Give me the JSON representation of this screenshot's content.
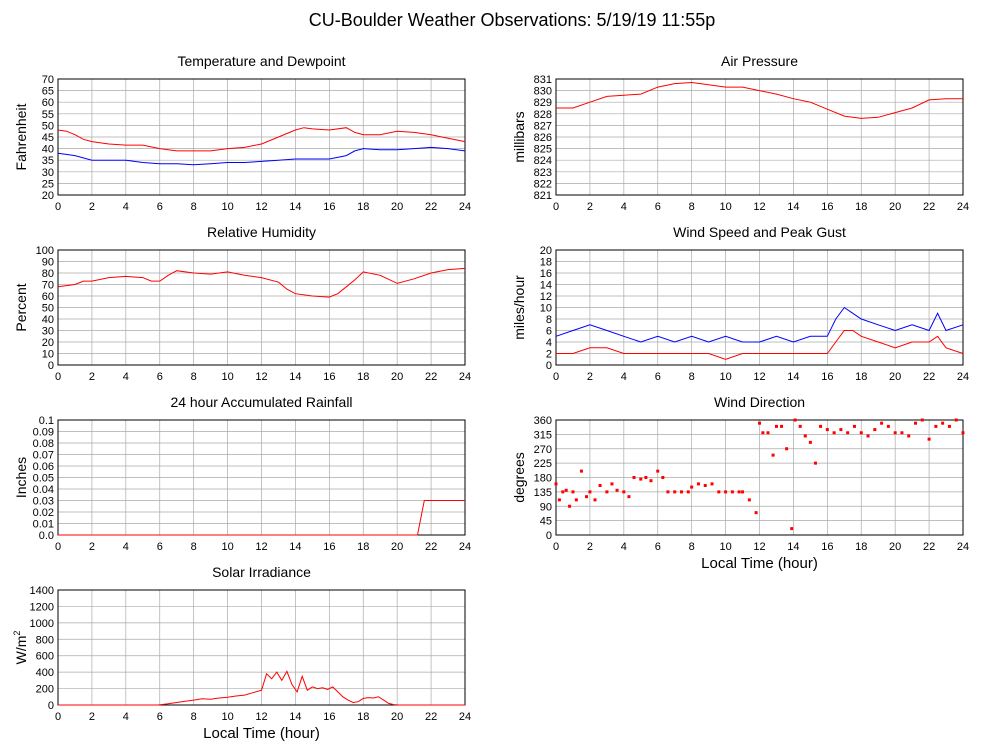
{
  "page": {
    "title": "CU-Boulder Weather Observations: 5/19/19 11:55p"
  },
  "chart_data": [
    {
      "id": "temp",
      "type": "line",
      "title": "Temperature and Dewpoint",
      "ylabel": "Fahrenheit",
      "xlabel": "",
      "xlim": [
        0,
        24
      ],
      "ylim": [
        20,
        70
      ],
      "xticks": [
        0,
        2,
        4,
        6,
        8,
        10,
        12,
        14,
        16,
        18,
        20,
        22,
        24
      ],
      "yticks": [
        20,
        25,
        30,
        35,
        40,
        45,
        50,
        55,
        60,
        65,
        70
      ],
      "grid": true,
      "series": [
        {
          "color": "#ff0000",
          "x": [
            0,
            0.5,
            1,
            1.5,
            2,
            3,
            4,
            5,
            6,
            7,
            8,
            9,
            10,
            11,
            12,
            13,
            14,
            14.5,
            15,
            16,
            17,
            17.5,
            18,
            19,
            20,
            21,
            22,
            23,
            24
          ],
          "y": [
            48,
            47.5,
            46,
            44,
            43,
            42,
            41.5,
            41.5,
            40,
            39,
            39,
            39,
            40,
            40.5,
            42,
            45,
            48,
            49,
            48.5,
            48,
            49,
            47,
            46,
            46,
            47.5,
            47,
            46,
            44.5,
            43
          ]
        },
        {
          "color": "#0000ff",
          "x": [
            0,
            1,
            2,
            3,
            4,
            5,
            6,
            7,
            8,
            9,
            10,
            11,
            12,
            13,
            14,
            15,
            16,
            17,
            17.5,
            18,
            19,
            20,
            21,
            22,
            23,
            24
          ],
          "y": [
            38,
            37,
            35,
            35,
            35,
            34,
            33.5,
            33.5,
            33,
            33.5,
            34,
            34,
            34.5,
            35,
            35.5,
            35.5,
            35.5,
            37,
            39,
            40,
            39.5,
            39.5,
            40,
            40.5,
            40,
            39
          ]
        }
      ]
    },
    {
      "id": "pressure",
      "type": "line",
      "title": "Air Pressure",
      "ylabel": "millibars",
      "xlabel": "",
      "xlim": [
        0,
        24
      ],
      "ylim": [
        821,
        831
      ],
      "xticks": [
        0,
        2,
        4,
        6,
        8,
        10,
        12,
        14,
        16,
        18,
        20,
        22,
        24
      ],
      "yticks": [
        821,
        822,
        823,
        824,
        825,
        826,
        827,
        828,
        829,
        830,
        831
      ],
      "grid": true,
      "series": [
        {
          "color": "#ff0000",
          "x": [
            0,
            1,
            2,
            3,
            4,
            5,
            6,
            7,
            8,
            9,
            10,
            11,
            12,
            13,
            14,
            15,
            16,
            17,
            18,
            19,
            20,
            21,
            22,
            23,
            24
          ],
          "y": [
            828.5,
            828.5,
            829,
            829.5,
            829.6,
            829.7,
            830.3,
            830.6,
            830.7,
            830.5,
            830.3,
            830.3,
            830,
            829.7,
            829.3,
            829,
            828.4,
            827.8,
            827.6,
            827.7,
            828.1,
            828.5,
            829.2,
            829.3,
            829.3
          ]
        }
      ]
    },
    {
      "id": "humidity",
      "type": "line",
      "title": "Relative Humidity",
      "ylabel": "Percent",
      "xlabel": "",
      "xlim": [
        0,
        24
      ],
      "ylim": [
        0,
        100
      ],
      "xticks": [
        0,
        2,
        4,
        6,
        8,
        10,
        12,
        14,
        16,
        18,
        20,
        22,
        24
      ],
      "yticks": [
        0,
        10,
        20,
        30,
        40,
        50,
        60,
        70,
        80,
        90,
        100
      ],
      "grid": true,
      "series": [
        {
          "color": "#ff0000",
          "x": [
            0,
            0.5,
            1,
            1.5,
            2,
            3,
            4,
            5,
            5.5,
            6,
            6.5,
            7,
            8,
            9,
            10,
            11,
            12,
            13,
            13.5,
            14,
            15,
            16,
            16.5,
            17,
            17.5,
            18,
            19,
            20,
            21,
            22,
            23,
            24
          ],
          "y": [
            68,
            69,
            70,
            73,
            73,
            76,
            77,
            76,
            73,
            73,
            78,
            82,
            80,
            79,
            81,
            78,
            76,
            72,
            66,
            62,
            60,
            59,
            62,
            68,
            74,
            81,
            78,
            71,
            75,
            80,
            83,
            84
          ]
        }
      ]
    },
    {
      "id": "wind",
      "type": "line",
      "title": "Wind Speed and Peak Gust",
      "ylabel": "miles/hour",
      "xlabel": "",
      "xlim": [
        0,
        24
      ],
      "ylim": [
        0,
        20
      ],
      "xticks": [
        0,
        2,
        4,
        6,
        8,
        10,
        12,
        14,
        16,
        18,
        20,
        22,
        24
      ],
      "yticks": [
        0,
        2,
        4,
        6,
        8,
        10,
        12,
        14,
        16,
        18,
        20
      ],
      "grid": true,
      "series": [
        {
          "color": "#0000ff",
          "x": [
            0,
            1,
            2,
            3,
            4,
            5,
            6,
            7,
            8,
            9,
            10,
            11,
            12,
            13,
            14,
            15,
            16,
            16.5,
            17,
            17.5,
            18,
            19,
            20,
            21,
            22,
            22.5,
            23,
            24
          ],
          "y": [
            5,
            6,
            7,
            6,
            5,
            4,
            5,
            4,
            5,
            4,
            5,
            4,
            4,
            5,
            4,
            5,
            5,
            8,
            10,
            9,
            8,
            7,
            6,
            7,
            6,
            9,
            6,
            7
          ]
        },
        {
          "color": "#ff0000",
          "x": [
            0,
            1,
            2,
            3,
            4,
            5,
            6,
            7,
            8,
            9,
            10,
            11,
            12,
            13,
            14,
            15,
            16,
            16.5,
            17,
            17.5,
            18,
            19,
            20,
            21,
            22,
            22.5,
            23,
            24
          ],
          "y": [
            2,
            2,
            3,
            3,
            2,
            2,
            2,
            2,
            2,
            2,
            1,
            2,
            2,
            2,
            2,
            2,
            2,
            4,
            6,
            6,
            5,
            4,
            3,
            4,
            4,
            5,
            3,
            2
          ]
        }
      ]
    },
    {
      "id": "rain",
      "type": "line",
      "title": "24 hour Accumulated Rainfall",
      "ylabel": "Inches",
      "xlabel": "",
      "xlim": [
        0,
        24
      ],
      "ylim": [
        0,
        0.1
      ],
      "xticks": [
        0,
        2,
        4,
        6,
        8,
        10,
        12,
        14,
        16,
        18,
        20,
        22,
        24
      ],
      "yticks": [
        "0.0",
        "0.01",
        "0.02",
        "0.03",
        "0.04",
        "0.05",
        "0.06",
        "0.07",
        "0.08",
        "0.09",
        "0.1"
      ],
      "grid": true,
      "series": [
        {
          "color": "#ff0000",
          "x": [
            0,
            21.2,
            21.6,
            24
          ],
          "y": [
            0,
            0,
            0.03,
            0.03
          ]
        }
      ]
    },
    {
      "id": "direction",
      "type": "scatter",
      "title": "Wind Direction",
      "ylabel": "degrees",
      "xlabel": "Local Time (hour)",
      "xlim": [
        0,
        24
      ],
      "ylim": [
        0,
        360
      ],
      "xticks": [
        0,
        2,
        4,
        6,
        8,
        10,
        12,
        14,
        16,
        18,
        20,
        22,
        24
      ],
      "yticks": [
        0,
        45,
        90,
        135,
        180,
        225,
        270,
        315,
        360
      ],
      "grid": true,
      "series": [
        {
          "color": "#ff0000",
          "x": [
            0,
            0.2,
            0.4,
            0.6,
            0.8,
            1,
            1.2,
            1.5,
            1.8,
            2,
            2.3,
            2.6,
            3,
            3.3,
            3.6,
            4,
            4.3,
            4.6,
            5,
            5.3,
            5.6,
            6,
            6.3,
            6.6,
            7,
            7.4,
            7.8,
            8,
            8.4,
            8.8,
            9.2,
            9.6,
            10,
            10.4,
            10.8,
            11,
            11.4,
            11.8,
            12,
            12.2,
            12.5,
            12.8,
            13,
            13.3,
            13.6,
            13.9,
            14.1,
            14.4,
            14.7,
            15,
            15.3,
            15.6,
            16,
            16.4,
            16.8,
            17.2,
            17.6,
            18,
            18.4,
            18.8,
            19.2,
            19.6,
            20,
            20.4,
            20.8,
            21.2,
            21.6,
            22,
            22.4,
            22.8,
            23.2,
            23.6,
            24
          ],
          "y": [
            160,
            110,
            135,
            140,
            90,
            135,
            110,
            200,
            120,
            135,
            110,
            155,
            135,
            160,
            140,
            135,
            120,
            180,
            175,
            180,
            170,
            200,
            180,
            135,
            135,
            135,
            135,
            150,
            160,
            155,
            160,
            135,
            135,
            135,
            135,
            135,
            110,
            70,
            350,
            320,
            320,
            250,
            340,
            340,
            270,
            20,
            360,
            340,
            310,
            290,
            225,
            340,
            330,
            320,
            330,
            320,
            340,
            320,
            310,
            330,
            350,
            340,
            320,
            320,
            310,
            350,
            360,
            300,
            340,
            350,
            340,
            360,
            320
          ]
        }
      ]
    },
    {
      "id": "solar",
      "type": "area",
      "title": "Solar Irradiance",
      "ylabel": "W/m",
      "ylabel_sup": "2",
      "xlabel": "Local Time (hour)",
      "xlim": [
        0,
        24
      ],
      "ylim": [
        0,
        1400
      ],
      "xticks": [
        0,
        2,
        4,
        6,
        8,
        10,
        12,
        14,
        16,
        18,
        20,
        22,
        24
      ],
      "yticks": [
        0,
        200,
        400,
        600,
        800,
        1000,
        1200,
        1400
      ],
      "grid": true,
      "series": [
        {
          "color": "#ff0000",
          "x": [
            0,
            5.9,
            6.5,
            7,
            7.5,
            8,
            8.5,
            9,
            9.5,
            10,
            10.5,
            11,
            11.5,
            12,
            12.3,
            12.6,
            12.9,
            13.2,
            13.5,
            13.8,
            14.1,
            14.4,
            14.7,
            15,
            15.3,
            15.6,
            15.9,
            16.2,
            16.5,
            16.8,
            17.1,
            17.4,
            17.7,
            18,
            18.3,
            18.6,
            18.9,
            19.2,
            19.5,
            19.8,
            20.1,
            24
          ],
          "y": [
            0,
            0,
            15,
            30,
            45,
            60,
            75,
            70,
            85,
            95,
            110,
            120,
            150,
            180,
            380,
            320,
            400,
            300,
            410,
            250,
            160,
            350,
            180,
            220,
            200,
            210,
            190,
            220,
            160,
            100,
            60,
            30,
            40,
            80,
            90,
            85,
            100,
            60,
            20,
            5,
            0,
            0
          ]
        }
      ]
    }
  ]
}
